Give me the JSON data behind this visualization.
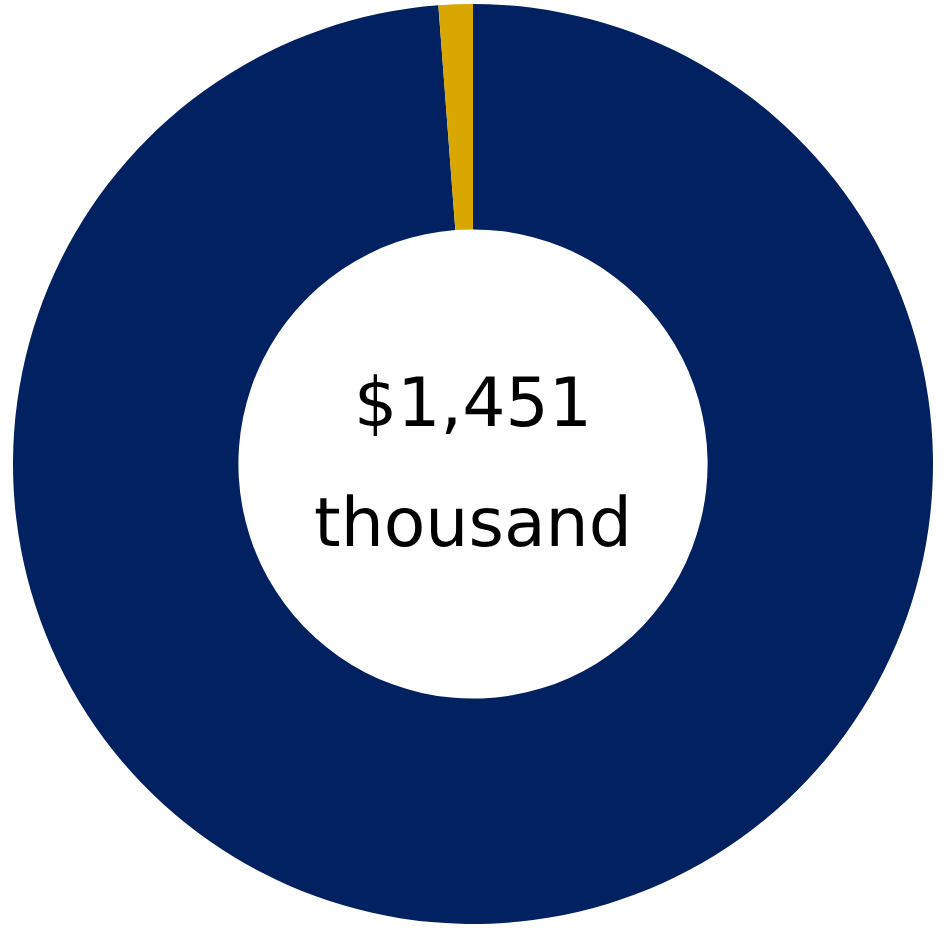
{
  "chart_data": {
    "type": "donut",
    "categories": [
      null,
      null
    ],
    "values": [
      98.8,
      1.2
    ],
    "colors": [
      "#012160",
      "#d9a800"
    ],
    "annotations": [
      "$1,451",
      "thousand"
    ],
    "legend": false
  }
}
